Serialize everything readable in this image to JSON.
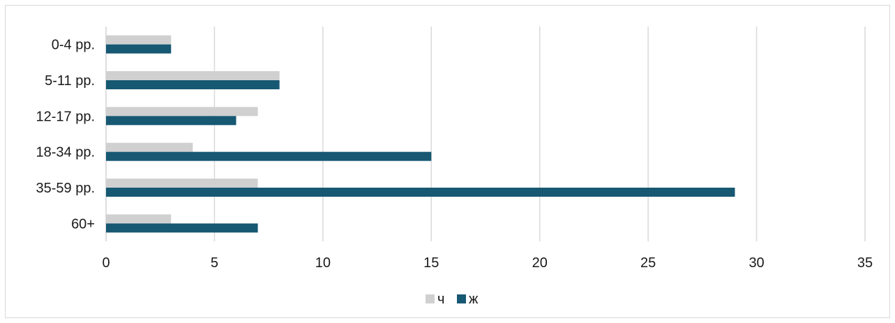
{
  "chart_data": {
    "type": "bar",
    "orientation": "horizontal",
    "categories": [
      "0-4 рр.",
      "5-11 рр.",
      "12-17 рр.",
      "18-34 рр.",
      "35-59 рр.",
      "60+"
    ],
    "series": [
      {
        "name": "ч",
        "color": "#d0d0d0",
        "values": [
          3,
          8,
          7,
          4,
          7,
          3
        ]
      },
      {
        "name": "ж",
        "color": "#175873",
        "values": [
          3,
          8,
          6,
          15,
          29,
          7
        ]
      }
    ],
    "xlim": [
      0,
      35
    ],
    "xticks": [
      "0",
      "5",
      "10",
      "15",
      "20",
      "25",
      "30",
      "35"
    ],
    "grid": true,
    "legend_position": "bottom"
  }
}
